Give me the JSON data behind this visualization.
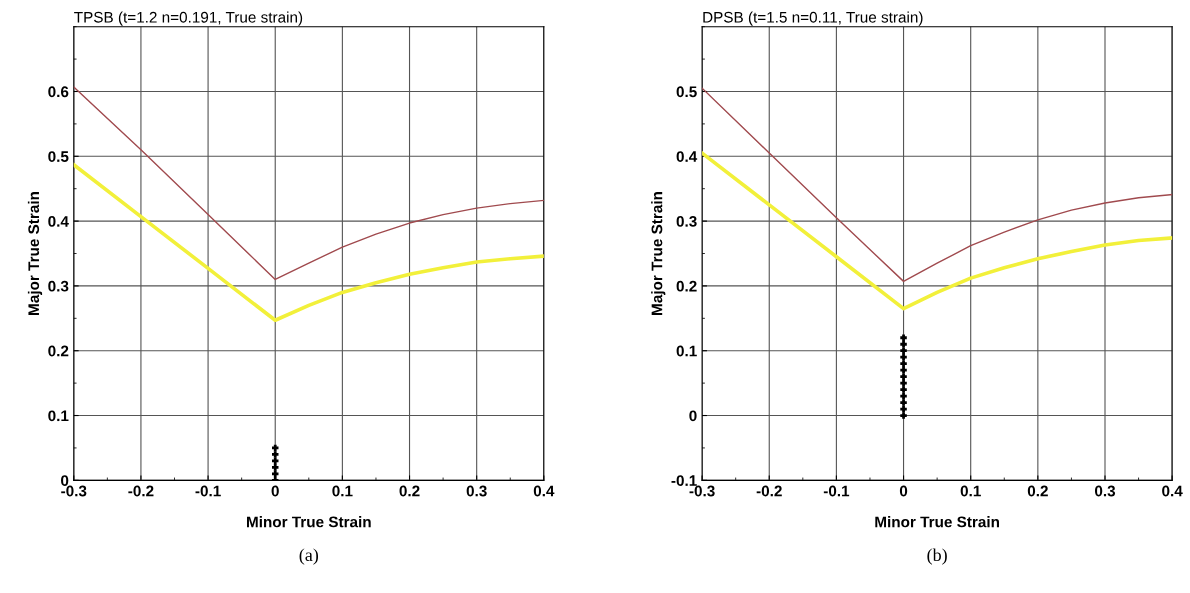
{
  "chart_data": [
    {
      "type": "line",
      "title": "TPSB (t=1.2 n=0.191, True strain)",
      "xlabel": "Minor True Strain",
      "ylabel": "Major True Strain",
      "annotations": [
        "(a)"
      ],
      "xlim": [
        -0.3,
        0.4
      ],
      "xticks": [
        -0.3,
        -0.2,
        -0.1,
        0,
        0.1,
        0.2,
        0.3,
        0.4
      ],
      "ylim": [
        0,
        0.7
      ],
      "yticks": [
        0,
        0.1,
        0.2,
        0.3,
        0.4,
        0.5,
        0.6
      ],
      "grid": true,
      "legend": false,
      "series": [
        {
          "color": "#a04a4e",
          "x": [
            -0.3,
            -0.2,
            -0.1,
            0,
            0.05,
            0.1,
            0.15,
            0.2,
            0.25,
            0.3,
            0.35,
            0.4
          ],
          "values": [
            0.607,
            0.51,
            0.41,
            0.31,
            0.335,
            0.36,
            0.38,
            0.397,
            0.41,
            0.42,
            0.427,
            0.432
          ]
        },
        {
          "color": "#f2f03a",
          "x": [
            -0.3,
            -0.2,
            -0.1,
            0,
            0.05,
            0.1,
            0.15,
            0.2,
            0.25,
            0.3,
            0.35,
            0.4
          ],
          "values": [
            0.487,
            0.407,
            0.327,
            0.247,
            0.27,
            0.29,
            0.305,
            0.318,
            0.328,
            0.337,
            0.342,
            0.346
          ]
        },
        {
          "type": "scatter",
          "marker": "cross",
          "color": "#000000",
          "x": [
            0,
            0,
            0,
            0,
            0,
            0
          ],
          "values": [
            0,
            0.01,
            0.02,
            0.03,
            0.04,
            0.05
          ]
        }
      ]
    },
    {
      "type": "line",
      "title": "DPSB (t=1.5 n=0.11, True strain)",
      "xlabel": "Minor True Strain",
      "ylabel": "Major True Strain",
      "annotations": [
        "(b)"
      ],
      "xlim": [
        -0.3,
        0.4
      ],
      "xticks": [
        -0.3,
        -0.2,
        -0.1,
        0,
        0.1,
        0.2,
        0.3,
        0.4
      ],
      "ylim": [
        -0.1,
        0.6
      ],
      "yticks": [
        -0.1,
        0,
        0.1,
        0.2,
        0.3,
        0.4,
        0.5
      ],
      "grid": true,
      "legend": false,
      "series": [
        {
          "color": "#a04a4e",
          "x": [
            -0.3,
            -0.2,
            -0.1,
            0,
            0.05,
            0.1,
            0.15,
            0.2,
            0.25,
            0.3,
            0.35,
            0.4
          ],
          "values": [
            0.505,
            0.405,
            0.305,
            0.207,
            0.235,
            0.262,
            0.283,
            0.302,
            0.317,
            0.328,
            0.336,
            0.341
          ]
        },
        {
          "color": "#f2f03a",
          "x": [
            -0.3,
            -0.2,
            -0.1,
            0,
            0.05,
            0.1,
            0.15,
            0.2,
            0.25,
            0.3,
            0.35,
            0.4
          ],
          "values": [
            0.405,
            0.325,
            0.245,
            0.165,
            0.19,
            0.212,
            0.228,
            0.242,
            0.253,
            0.263,
            0.27,
            0.274
          ]
        },
        {
          "type": "scatter",
          "marker": "cross",
          "color": "#000000",
          "x": [
            0,
            0,
            0,
            0,
            0,
            0,
            0,
            0,
            0,
            0,
            0,
            0,
            0
          ],
          "values": [
            0,
            0.01,
            0.02,
            0.03,
            0.04,
            0.05,
            0.06,
            0.07,
            0.08,
            0.09,
            0.1,
            0.11,
            0.12
          ]
        }
      ]
    }
  ]
}
